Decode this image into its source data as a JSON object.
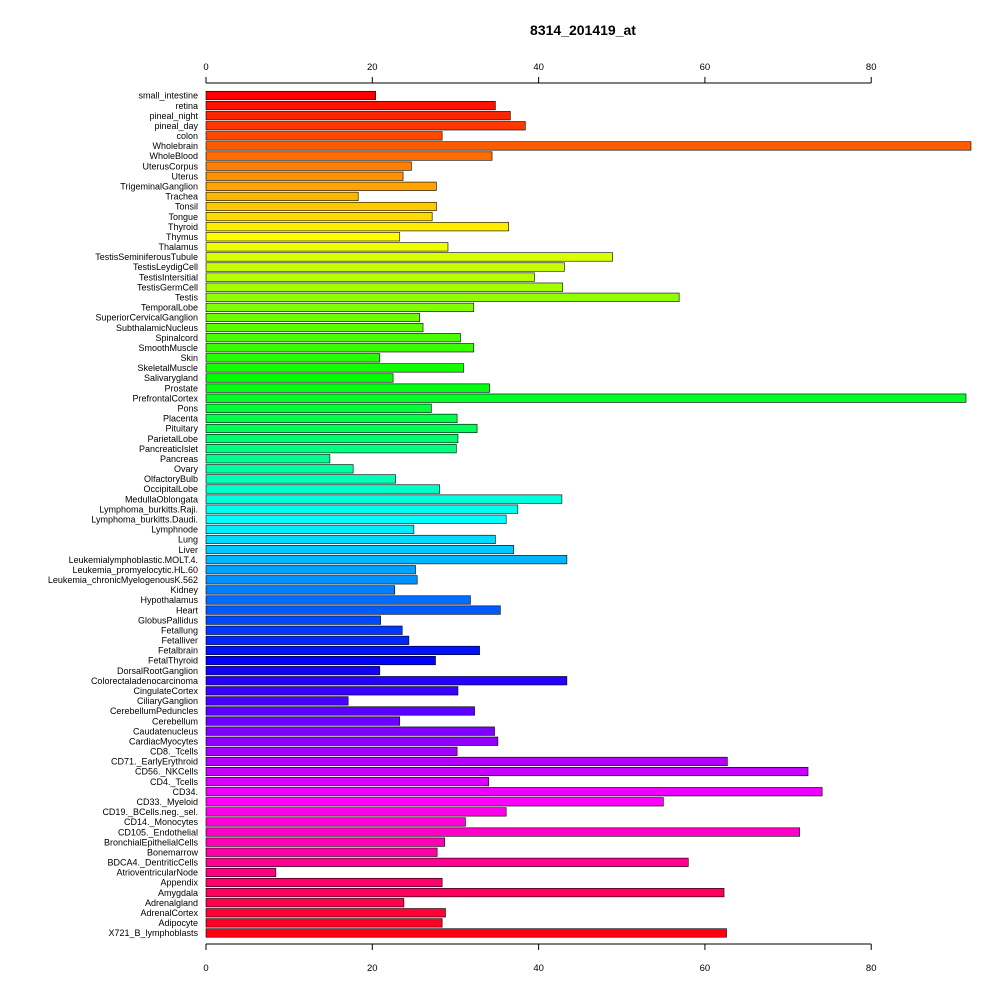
{
  "chart_data": {
    "type": "bar",
    "orientation": "horizontal",
    "title": "8314_201419_at",
    "xlabel": "",
    "ylabel": "",
    "xlim": [
      0,
      92
    ],
    "x_ticks": [
      0,
      20,
      40,
      60,
      80
    ],
    "x_tick_labels": [
      "0",
      "20",
      "40",
      "60",
      "80"
    ],
    "axes": [
      "top",
      "bottom"
    ],
    "grid": false,
    "colormap": "rainbow",
    "categories": [
      "small_intestine",
      "retina",
      "pineal_night",
      "pineal_day",
      "colon",
      "Wholebrain",
      "WholeBlood",
      "UterusCorpus",
      "Uterus",
      "TrigeminalGanglion",
      "Trachea",
      "Tonsil",
      "Tongue",
      "Thyroid",
      "Thymus",
      "Thalamus",
      "TestisSeminiferousTubule",
      "TestisLeydigCell",
      "TestisIntersitial",
      "TestisGermCell",
      "Testis",
      "TemporalLobe",
      "SuperiorCervicalGanglion",
      "SubthalamicNucleus",
      "Spinalcord",
      "SmoothMuscle",
      "Skin",
      "SkeletalMuscle",
      "Salivarygland",
      "Prostate",
      "PrefrontalCortex",
      "Pons",
      "Placenta",
      "Pituitary",
      "ParietalLobe",
      "PancreaticIslet",
      "Pancreas",
      "Ovary",
      "OlfactoryBulb",
      "OccipitalLobe",
      "MedullaOblongata",
      "Lymphoma_burkitts.Raji.",
      "Lymphoma_burkitts.Daudi.",
      "Lymphnode",
      "Lung",
      "Liver",
      "Leukemialymphoblastic.MOLT.4.",
      "Leukemia_promyelocytic.HL.60",
      "Leukemia_chronicMyelogenousK.562",
      "Kidney",
      "Hypothalamus",
      "Heart",
      "GlobusPallidus",
      "Fetallung",
      "Fetalliver",
      "Fetalbrain",
      "FetalThyroid",
      "DorsalRootGanglion",
      "Colorectaladenocarcinoma",
      "CingulateCortex",
      "CiliaryGanglion",
      "CerebellumPeduncles",
      "Cerebellum",
      "Caudatenucleus",
      "CardiacMyocytes",
      "CD8._Tcells",
      "CD71._EarlyErythroid",
      "CD56._NKCells",
      "CD4._Tcells",
      "CD34.",
      "CD33._Myeloid",
      "CD19._BCells.neg._sel.",
      "CD14._Monocytes",
      "CD105._Endothelial",
      "BronchialEpithelialCells",
      "Bonemarrow",
      "BDCA4._DentriticCells",
      "AtrioventricularNode",
      "Appendix",
      "Amygdala",
      "Adrenalgland",
      "AdrenalCortex",
      "Adipocyte",
      "X721_B_lymphoblasts"
    ],
    "values": [
      20.4,
      34.8,
      36.6,
      38.4,
      28.4,
      92.0,
      34.4,
      24.7,
      23.7,
      27.7,
      18.3,
      27.7,
      27.2,
      36.4,
      23.3,
      29.1,
      48.9,
      43.1,
      39.5,
      42.9,
      56.9,
      32.2,
      25.7,
      26.1,
      30.6,
      32.2,
      20.9,
      31.0,
      22.5,
      34.1,
      91.4,
      27.1,
      30.2,
      32.6,
      30.3,
      30.1,
      14.9,
      17.7,
      22.8,
      28.1,
      42.8,
      37.5,
      36.1,
      25.0,
      34.8,
      37.0,
      43.4,
      25.2,
      25.4,
      22.7,
      31.8,
      35.4,
      21.0,
      23.6,
      24.4,
      32.9,
      27.6,
      20.9,
      43.4,
      30.3,
      17.1,
      32.3,
      23.3,
      34.7,
      35.1,
      30.2,
      62.7,
      72.4,
      34.0,
      74.1,
      55.0,
      36.1,
      31.2,
      71.4,
      28.7,
      27.8,
      58.0,
      8.4,
      28.4,
      62.3,
      23.8,
      28.8,
      28.4,
      62.6
    ]
  }
}
